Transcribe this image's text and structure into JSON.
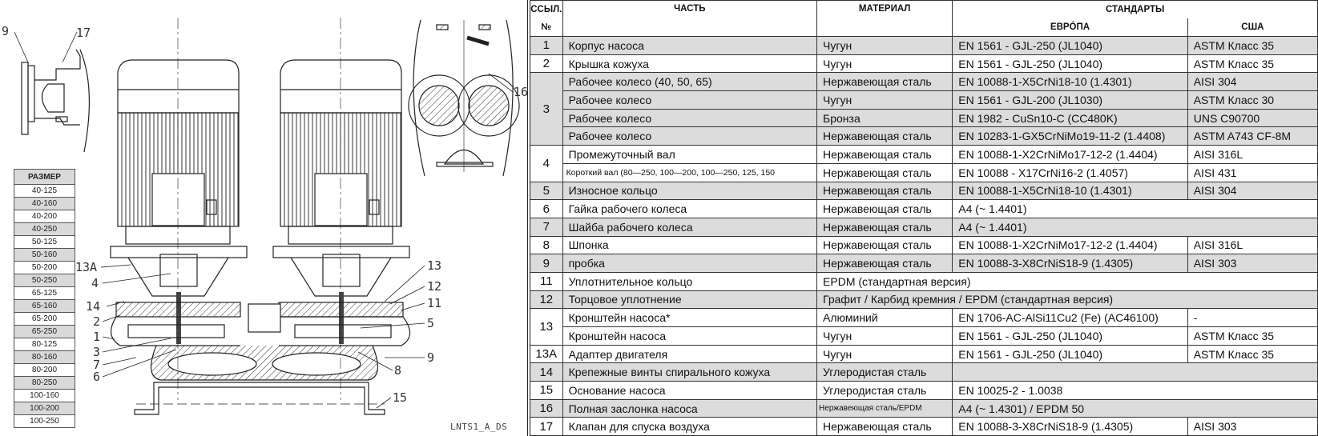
{
  "drawing": {
    "code": "LNTS1_A_DS",
    "callouts": {
      "c9_top": "9",
      "c17": "17",
      "c16": "16",
      "c13A": "13A",
      "c4": "4",
      "c14": "14",
      "c2": "2",
      "c1": "1",
      "c3": "3",
      "c7": "7",
      "c6": "6",
      "c13": "13",
      "c12": "12",
      "c11": "11",
      "c5": "5",
      "c9": "9",
      "c8": "8",
      "c15": "15"
    }
  },
  "sizes": {
    "header": "РАЗМЕР",
    "items": [
      "40-125",
      "40-160",
      "40-200",
      "40-250",
      "50-125",
      "50-160",
      "50-200",
      "50-250",
      "65-125",
      "65-160",
      "65-200",
      "65-250",
      "80-125",
      "80-160",
      "80-200",
      "80-250",
      "100-160",
      "100-200",
      "100-250"
    ]
  },
  "parts_table": {
    "headers": {
      "ref_top": "ССЫЛ.",
      "ref_bottom": "№",
      "part": "ЧАСТЬ",
      "material": "МАТЕРИАЛ",
      "standards": "СТАНДАРТЫ",
      "europe": "ЕВРÓПА",
      "usa": "США"
    },
    "shade_color": "#dcdcdc",
    "groups": [
      {
        "ref": "1",
        "shaded": true,
        "rows": [
          {
            "part": "Корпус насоса",
            "material": "Чугун",
            "europe": "EN 1561 - GJL-250 (JL1040)",
            "usa": "ASTM Класс 35"
          }
        ]
      },
      {
        "ref": "2",
        "shaded": false,
        "rows": [
          {
            "part": "Крышка кожуха",
            "material": "Чугун",
            "europe": "EN 1561 - GJL-250 (JL1040)",
            "usa": "ASTM Класс 35"
          }
        ]
      },
      {
        "ref": "3",
        "shaded": true,
        "rows": [
          {
            "part": "Рабочее колесо (40, 50, 65)",
            "material": "Нержавеющая сталь",
            "europe": "EN 10088-1-X5CrNi18-10 (1.4301)",
            "usa": "AISI 304"
          },
          {
            "part": "Рабочее колесо",
            "material": "Чугун",
            "europe": "EN 1561 - GJL-200 (JL1030)",
            "usa": "ASTM Класс 30"
          },
          {
            "part": "Рабочее колесо",
            "material": "Бронза",
            "europe": "EN 1982 - CuSn10-C (CC480K)",
            "usa": "UNS C90700"
          },
          {
            "part": "Рабочее колесо",
            "material": "Нержавеющая сталь",
            "europe": "EN 10283-1-GX5CrNiMo19-11-2 (1.4408)",
            "usa": "ASTM A743 CF-8M"
          }
        ]
      },
      {
        "ref": "4",
        "shaded": false,
        "rows": [
          {
            "part": "Промежуточный вал",
            "material": "Нержавеющая сталь",
            "europe": "EN 10088-1-X2CrNiMo17-12-2 (1.4404)",
            "usa": "AISI 316L"
          },
          {
            "part": "Короткий вал (80—250, 100—200, 100—250, 125, 150",
            "material": "Нержавеющая сталь",
            "europe": "EN 10088 - X17CrNi16-2 (1.4057)",
            "usa": "AISI 431"
          }
        ]
      },
      {
        "ref": "5",
        "shaded": true,
        "rows": [
          {
            "part": "Износное кольцо",
            "material": "Нержавеющая сталь",
            "europe": "EN 10088-1-X5CrNi18-10 (1.4301)",
            "usa": "AISI 304"
          }
        ]
      },
      {
        "ref": "6",
        "shaded": false,
        "rows": [
          {
            "part": "Гайка рабочего колеса",
            "material": "Нержавеющая сталь",
            "europe": "A4 (~ 1.4401)"
          }
        ]
      },
      {
        "ref": "7",
        "shaded": true,
        "rows": [
          {
            "part": "Шайба рабочего колеса",
            "material": "Нержавеющая сталь",
            "europe": "A4 (~ 1.4401)"
          }
        ]
      },
      {
        "ref": "8",
        "shaded": false,
        "rows": [
          {
            "part": "Шпонка",
            "material": "Нержавеющая сталь",
            "europe": "EN 10088-1-X2CrNiMo17-12-2 (1.4404)",
            "usa": "AISI 316L"
          }
        ]
      },
      {
        "ref": "9",
        "shaded": true,
        "rows": [
          {
            "part": "пробка",
            "material": "Нержавеющая сталь",
            "europe": "EN 10088-3-X8CrNiS18-9 (1.4305)",
            "usa": "AISI 303"
          }
        ]
      },
      {
        "ref": "11",
        "shaded": false,
        "rows": [
          {
            "part": "Уплотнительное кольцо",
            "material": "EPDM (стандартная версия)"
          }
        ]
      },
      {
        "ref": "12",
        "shaded": true,
        "rows": [
          {
            "part": "Торцовое уплотнение",
            "material": "Графит / Карбид кремния / EPDM (стандартная версия)"
          }
        ]
      },
      {
        "ref": "13",
        "shaded": false,
        "rows": [
          {
            "part": "Кронштейн насоса*",
            "material": "Алюминий",
            "europe": "EN 1706-AC-AlSi11Cu2 (Fe) (AC46100)",
            "usa": "-"
          },
          {
            "part": "Кронштейн насоса",
            "material": "Чугун",
            "europe": "EN 1561 - GJL-250 (JL1040)",
            "usa": "ASTM Класс 35"
          }
        ]
      },
      {
        "ref": "13A",
        "shaded": false,
        "rows": [
          {
            "part": "Адаптер двигателя",
            "material": "Чугун",
            "europe": "EN 1561 - GJL-250 (JL1040)",
            "usa": "ASTM Класс 35"
          }
        ]
      },
      {
        "ref": "14",
        "shaded": true,
        "rows": [
          {
            "part": "Крепежные винты спирального кожуха",
            "material": "Углеродистая сталь",
            "europe": ""
          }
        ]
      },
      {
        "ref": "15",
        "shaded": false,
        "rows": [
          {
            "part": "Основание насоса",
            "material": "Углеродистая сталь",
            "europe": "EN 10025-2 - 1.0038"
          }
        ]
      },
      {
        "ref": "16",
        "shaded": true,
        "rows": [
          {
            "part": "Полная заслонка насоса",
            "material": "Нержавеющая сталь/EPDM",
            "europe": "A4 (~ 1.4301) / EPDM 50"
          }
        ]
      },
      {
        "ref": "17",
        "shaded": false,
        "rows": [
          {
            "part": "Клапан для спуска воздуха",
            "material": "Нержавеющая сталь",
            "europe": "EN 10088-3-X8CrNiS18-9 (1.4305)",
            "usa": "AISI 303"
          }
        ]
      }
    ]
  }
}
